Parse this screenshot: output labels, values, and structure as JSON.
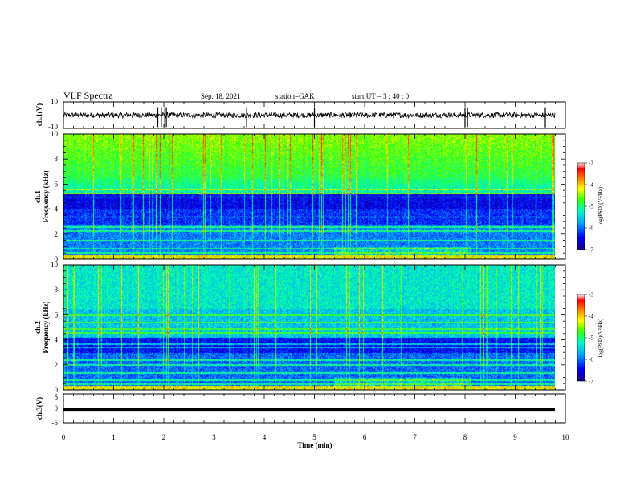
{
  "header": {
    "title": "VLF Spectra",
    "date": "Sep. 18, 2021",
    "station": "station=GAK",
    "start_ut": "start  UT =  3 : 40 : 0"
  },
  "colors": {
    "colormap": [
      "#1a0080",
      "#0000ff",
      "#00a0ff",
      "#00ffc0",
      "#40ff00",
      "#ffff00",
      "#ff8000",
      "#ff0000",
      "#ffffff"
    ],
    "trace": "#000000"
  },
  "chart_data": [
    {
      "type": "line",
      "id": "ch1-waveform",
      "ylabel": "ch.1(V)",
      "ylim": [
        -10,
        10
      ],
      "y_ticks": [
        "10",
        "-10"
      ],
      "x_range": [
        0,
        10
      ],
      "description_values": {
        "mean": 0,
        "amplitude": 2
      },
      "spikes_min": [
        1.88,
        1.95,
        2.02,
        2.05,
        3.65,
        5.0,
        8.0,
        8.05,
        9.6
      ]
    },
    {
      "type": "heatmap",
      "id": "ch1-spectrogram",
      "ylabel": "ch.1\nFrequency (kHz)",
      "ylabel_line1": "ch.1",
      "ylabel_line2": "Frequency (kHz)",
      "ylim": [
        0,
        10
      ],
      "y_ticks": [
        "0",
        "2",
        "4",
        "6",
        "8",
        "10"
      ],
      "x_range": [
        0,
        10
      ],
      "data_end_min": 9.8,
      "colorbar": {
        "label": "log(PSD)(V²/Hz)",
        "range": [
          -7,
          -3
        ],
        "ticks": [
          "-3",
          "-4",
          "-5",
          "-6",
          "-7"
        ]
      }
    },
    {
      "type": "heatmap",
      "id": "ch2-spectrogram",
      "ylabel_line1": "ch.2",
      "ylabel_line2": "Frequency (kHz)",
      "ylim": [
        0,
        10
      ],
      "y_ticks": [
        "0",
        "2",
        "4",
        "6",
        "8",
        "10"
      ],
      "x_range": [
        0,
        10
      ],
      "data_end_min": 9.8,
      "colorbar": {
        "label": "log(PSD)(V²/Hz)",
        "range": [
          -7,
          -3
        ],
        "ticks": [
          "-3",
          "-4",
          "-5",
          "-6",
          "-7"
        ]
      }
    },
    {
      "type": "line",
      "id": "ch3-waveform",
      "ylabel": "ch.3(V)",
      "ylim": [
        -5,
        5
      ],
      "y_ticks": [
        "5",
        "0",
        "-5"
      ],
      "x_range": [
        0,
        10
      ],
      "constant_value": -0.3
    }
  ],
  "x_axis": {
    "label": "Time (min)",
    "ticks": [
      "0",
      "1",
      "2",
      "3",
      "4",
      "5",
      "6",
      "7",
      "8",
      "9",
      "10"
    ]
  }
}
